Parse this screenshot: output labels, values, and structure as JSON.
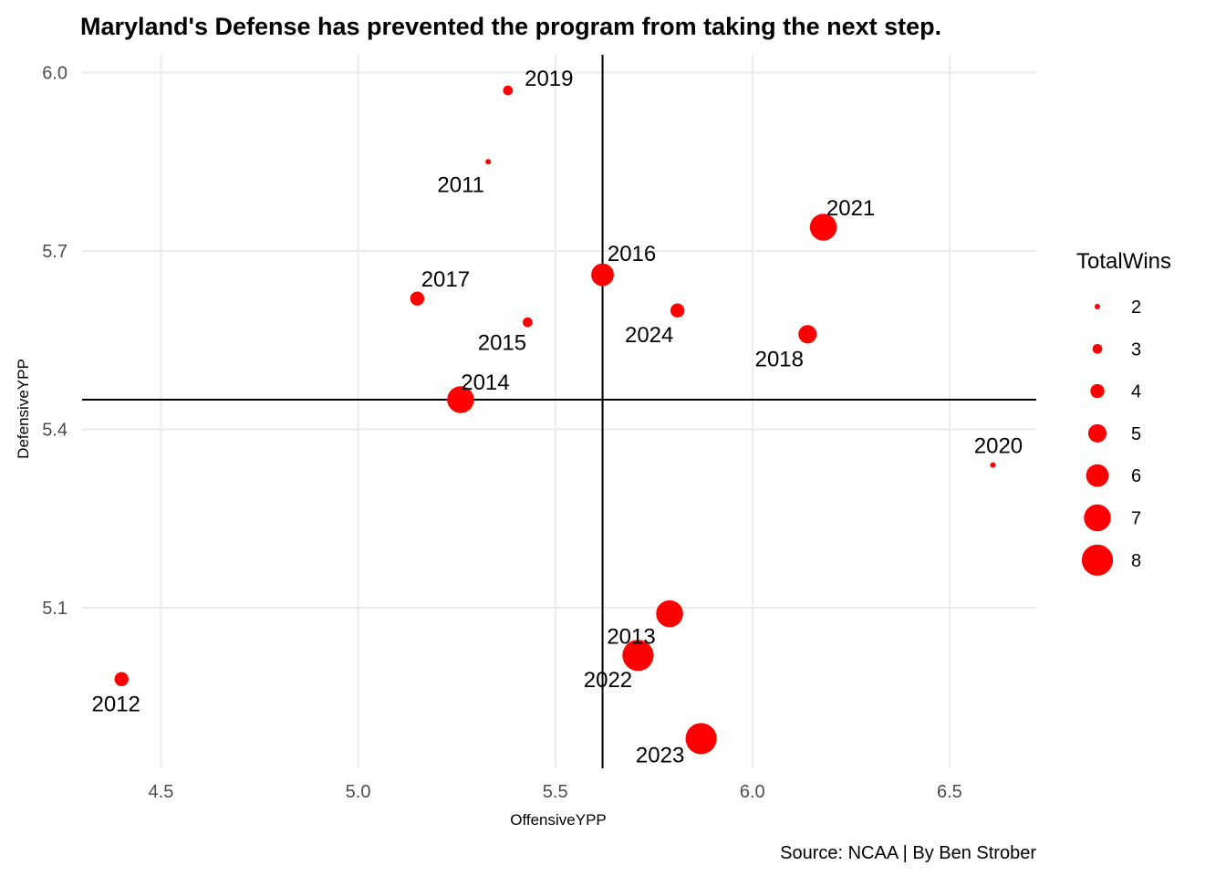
{
  "chart_data": {
    "type": "scatter",
    "title": "Maryland's Defense has prevented the program from taking the next step.",
    "xlabel": "OffensiveYPP",
    "ylabel": "DefensiveYPP",
    "caption": "Source: NCAA | By Ben Strober",
    "xlim": [
      4.3,
      6.72
    ],
    "ylim": [
      4.83,
      6.03
    ],
    "xticks": [
      "4.5",
      "5.0",
      "5.5",
      "6.0",
      "6.5"
    ],
    "yticks": [
      "5.1",
      "5.4",
      "5.7",
      "6.0"
    ],
    "ref_lines": {
      "x": 5.62,
      "y": 5.45
    },
    "point_color": "#ff0000",
    "legend": {
      "title": "TotalWins",
      "position": "right",
      "values": [
        "2",
        "3",
        "4",
        "5",
        "6",
        "7",
        "8"
      ]
    },
    "points": [
      {
        "label": "2011",
        "x": 5.33,
        "y": 5.85,
        "wins": 2
      },
      {
        "label": "2012",
        "x": 4.4,
        "y": 4.98,
        "wins": 4
      },
      {
        "label": "2013",
        "x": 5.79,
        "y": 5.09,
        "wins": 7
      },
      {
        "label": "2014",
        "x": 5.26,
        "y": 5.45,
        "wins": 7
      },
      {
        "label": "2015",
        "x": 5.43,
        "y": 5.58,
        "wins": 3
      },
      {
        "label": "2016",
        "x": 5.62,
        "y": 5.66,
        "wins": 6
      },
      {
        "label": "2017",
        "x": 5.15,
        "y": 5.62,
        "wins": 4
      },
      {
        "label": "2018",
        "x": 6.14,
        "y": 5.56,
        "wins": 5
      },
      {
        "label": "2019",
        "x": 5.38,
        "y": 5.97,
        "wins": 3
      },
      {
        "label": "2020",
        "x": 6.61,
        "y": 5.34,
        "wins": 2
      },
      {
        "label": "2021",
        "x": 6.18,
        "y": 5.74,
        "wins": 7
      },
      {
        "label": "2022",
        "x": 5.71,
        "y": 5.02,
        "wins": 8
      },
      {
        "label": "2023",
        "x": 5.87,
        "y": 4.88,
        "wins": 8
      },
      {
        "label": "2024",
        "x": 5.81,
        "y": 5.6,
        "wins": 4
      }
    ]
  }
}
